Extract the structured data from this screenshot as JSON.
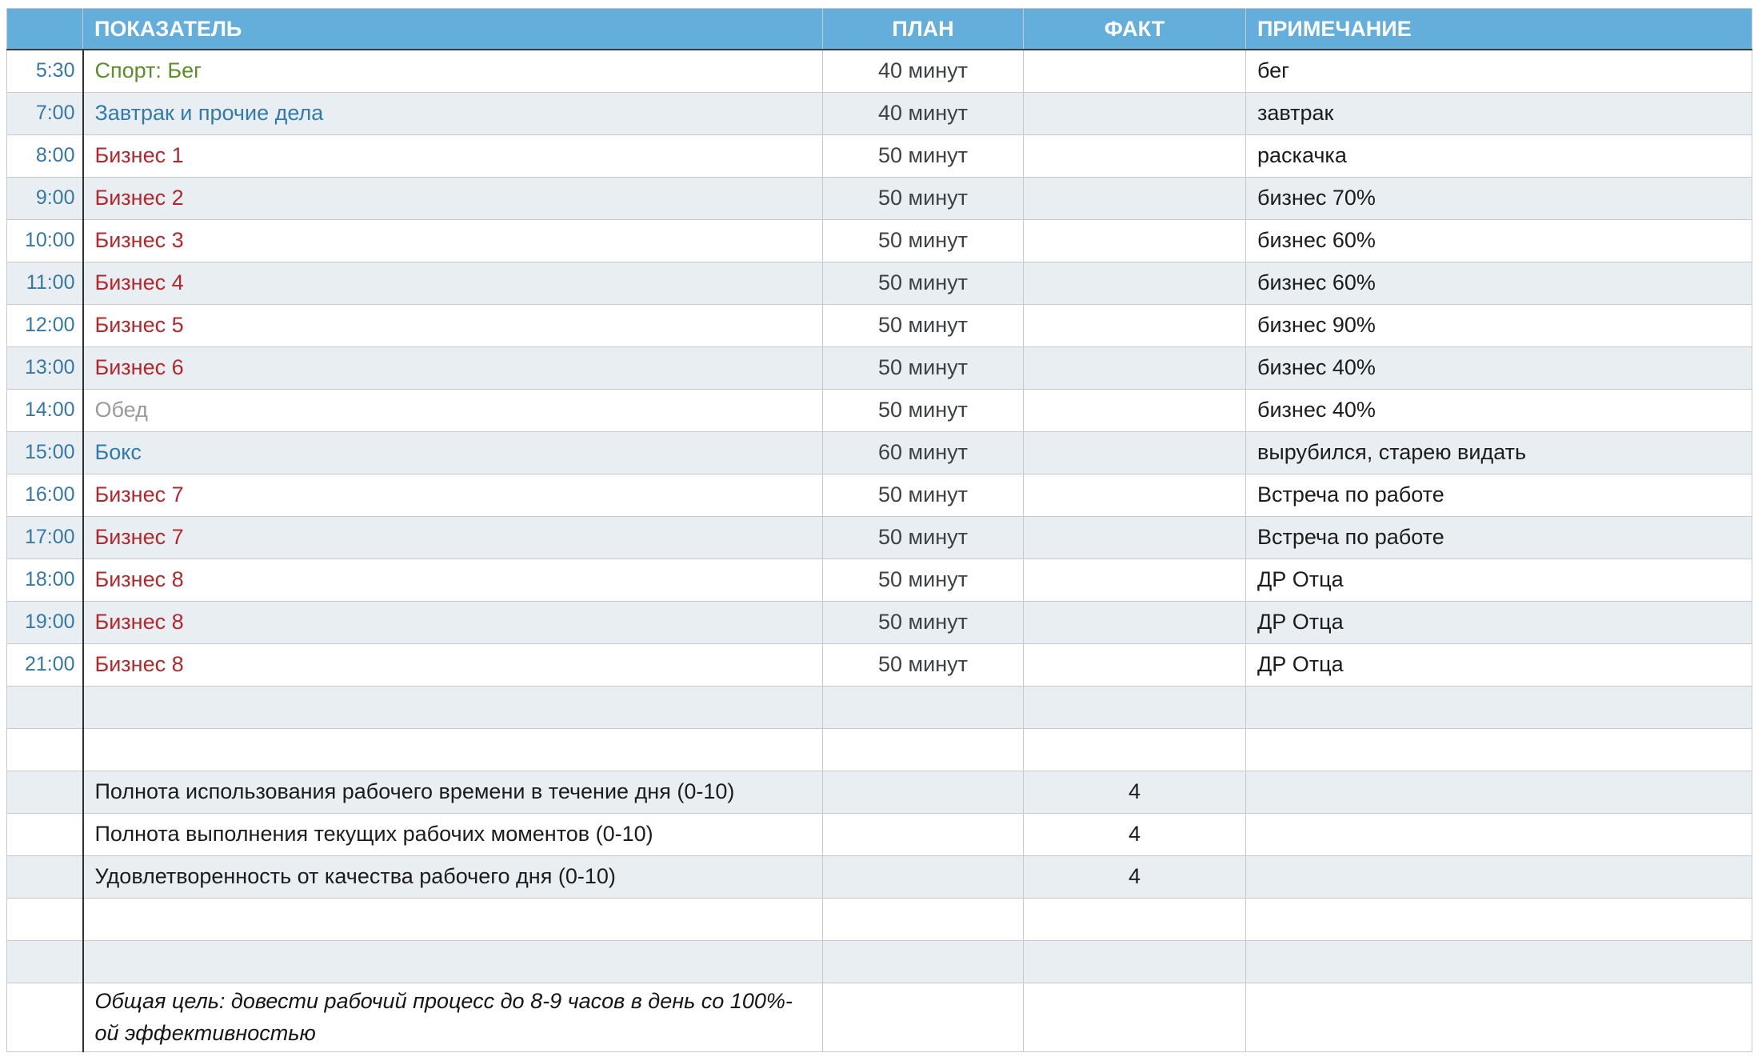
{
  "colors": {
    "header_bg": "#64aedb",
    "header_text": "#ffffff",
    "header_bottom_line": "#3a3a3a",
    "row_alt_bg": "#e9eef2",
    "grid_line": "#c6cace",
    "divider_dark": "#2e2e2e",
    "time_text": "#3578a5",
    "green": "#5a8f29",
    "blue": "#327ba8",
    "red": "#b3282d",
    "gray": "#9a9a9a",
    "plan_text": "#3e4144",
    "note_text": "#1c1c1c"
  },
  "table": {
    "columns": [
      {
        "key": "time",
        "label": ""
      },
      {
        "key": "indicator",
        "label": "ПОКАЗАТЕЛЬ"
      },
      {
        "key": "plan",
        "label": "ПЛАН"
      },
      {
        "key": "fact",
        "label": "ФАКТ"
      },
      {
        "key": "note",
        "label": "ПРИМЕЧАНИЕ"
      }
    ],
    "rows": [
      {
        "kind": "entry",
        "time": "5:30",
        "indicator": "Спорт: Бег",
        "color": "green",
        "plan": "40 минут",
        "fact": "",
        "note": "бег"
      },
      {
        "kind": "entry",
        "time": "7:00",
        "indicator": "Завтрак и прочие дела",
        "color": "blue",
        "plan": "40 минут",
        "fact": "",
        "note": "завтрак"
      },
      {
        "kind": "entry",
        "time": "8:00",
        "indicator": "Бизнес 1",
        "color": "red",
        "plan": "50 минут",
        "fact": "",
        "note": "раскачка"
      },
      {
        "kind": "entry",
        "time": "9:00",
        "indicator": "Бизнес 2",
        "color": "red",
        "plan": "50 минут",
        "fact": "",
        "note": "бизнес 70%"
      },
      {
        "kind": "entry",
        "time": "10:00",
        "indicator": "Бизнес 3",
        "color": "red",
        "plan": "50 минут",
        "fact": "",
        "note": "бизнес 60%"
      },
      {
        "kind": "entry",
        "time": "11:00",
        "indicator": "Бизнес 4",
        "color": "red",
        "plan": "50 минут",
        "fact": "",
        "note": "бизнес 60%"
      },
      {
        "kind": "entry",
        "time": "12:00",
        "indicator": "Бизнес 5",
        "color": "red",
        "plan": "50 минут",
        "fact": "",
        "note": "бизнес 90%"
      },
      {
        "kind": "entry",
        "time": "13:00",
        "indicator": "Бизнес 6",
        "color": "red",
        "plan": "50 минут",
        "fact": "",
        "note": "бизнес 40%"
      },
      {
        "kind": "entry",
        "time": "14:00",
        "indicator": "Обед",
        "color": "gray",
        "plan": "50 минут",
        "fact": "",
        "note": "бизнес 40%"
      },
      {
        "kind": "entry",
        "time": "15:00",
        "indicator": "Бокс",
        "color": "blue",
        "plan": "60 минут",
        "fact": "",
        "note": "вырубился, старею видать"
      },
      {
        "kind": "entry",
        "time": "16:00",
        "indicator": "Бизнес 7",
        "color": "red",
        "plan": "50 минут",
        "fact": "",
        "note": "Встреча по работе"
      },
      {
        "kind": "entry",
        "time": "17:00",
        "indicator": "Бизнес 7",
        "color": "red",
        "plan": "50 минут",
        "fact": "",
        "note": "Встреча по работе"
      },
      {
        "kind": "entry",
        "time": "18:00",
        "indicator": "Бизнес 8",
        "color": "red",
        "plan": "50 минут",
        "fact": "",
        "note": "ДР Отца"
      },
      {
        "kind": "entry",
        "time": "19:00",
        "indicator": "Бизнес 8",
        "color": "red",
        "plan": "50 минут",
        "fact": "",
        "note": "ДР Отца"
      },
      {
        "kind": "entry",
        "time": "21:00",
        "indicator": "Бизнес 8",
        "color": "red",
        "plan": "50 минут",
        "fact": "",
        "note": "ДР Отца"
      },
      {
        "kind": "empty"
      },
      {
        "kind": "empty"
      },
      {
        "kind": "summary",
        "indicator": "Полнота использования рабочего времени в течение дня (0-10)",
        "fact": "4"
      },
      {
        "kind": "summary",
        "indicator": "Полнота выполнения текущих рабочих моментов (0-10)",
        "fact": "4"
      },
      {
        "kind": "summary",
        "indicator": "Удовлетворенность от качества рабочего дня (0-10)",
        "fact": "4"
      },
      {
        "kind": "empty"
      },
      {
        "kind": "empty"
      },
      {
        "kind": "goal",
        "indicator": "Общая цель: довести рабочий процесс до 8-9 часов в день со 100%-ой эффективностью"
      }
    ]
  }
}
